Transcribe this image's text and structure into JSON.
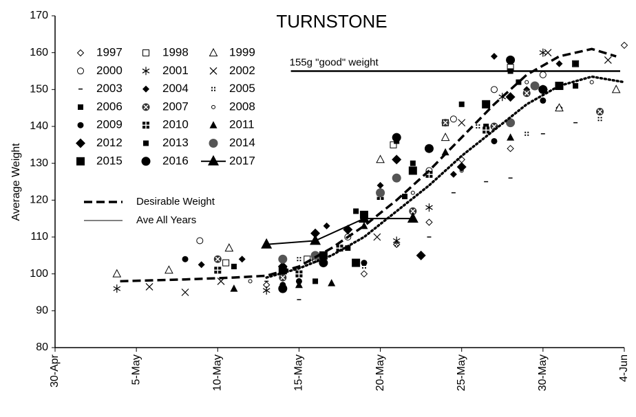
{
  "chart_data": {
    "type": "scatter",
    "title": "TURNSTONE",
    "y_label": "Average Weight",
    "xlim": [
      0,
      35
    ],
    "ylim": [
      80,
      170
    ],
    "xticks": [
      {
        "value": 0,
        "label": "30-Apr"
      },
      {
        "value": 5,
        "label": "5-May"
      },
      {
        "value": 10,
        "label": "10-May"
      },
      {
        "value": 15,
        "label": "15-May"
      },
      {
        "value": 20,
        "label": "20-May"
      },
      {
        "value": 25,
        "label": "25-May"
      },
      {
        "value": 30,
        "label": "30-May"
      },
      {
        "value": 35,
        "label": "4-Jun"
      }
    ],
    "yticks": [
      80,
      90,
      100,
      110,
      120,
      130,
      140,
      150,
      160,
      170
    ],
    "reference_line": {
      "value": 155,
      "x_start": 14.5,
      "label": "155g \"good\" weight"
    },
    "series": [
      {
        "name": "1997",
        "marker": "diamond-open",
        "color": "#000",
        "x": [
          13,
          19,
          21,
          23,
          25,
          28,
          31,
          35
        ],
        "values": [
          97,
          100,
          108,
          114,
          131,
          134,
          145,
          162
        ]
      },
      {
        "name": "1998",
        "marker": "square-open",
        "color": "#000",
        "x": [
          10.5,
          15.5,
          20.8,
          24,
          28,
          32
        ],
        "values": [
          103,
          104,
          135,
          141,
          156,
          157
        ]
      },
      {
        "name": "1999",
        "marker": "triangle-open",
        "color": "#000",
        "x": [
          3.8,
          7,
          10.7,
          20,
          24,
          31,
          34.5
        ],
        "values": [
          100,
          101,
          107,
          131,
          137,
          145,
          150
        ]
      },
      {
        "name": "2000",
        "marker": "circle-open",
        "color": "#000",
        "x": [
          8.9,
          18,
          21,
          23,
          24.5,
          27,
          30
        ],
        "values": [
          109,
          110,
          131,
          128,
          142,
          150,
          154
        ]
      },
      {
        "name": "2001",
        "marker": "asterisk",
        "color": "#000",
        "x": [
          3.8,
          13,
          21,
          23,
          27.5,
          30
        ],
        "values": [
          96,
          95.5,
          109,
          118,
          148,
          160
        ]
      },
      {
        "name": "2002",
        "marker": "x-cross",
        "color": "#000",
        "x": [
          5.8,
          8,
          10.2,
          19.8,
          25,
          30.3,
          34
        ],
        "values": [
          96.5,
          95,
          98,
          110,
          141,
          160,
          158
        ]
      },
      {
        "name": "2003",
        "marker": "dash",
        "color": "#000",
        "x": [
          13,
          15,
          23,
          24.5,
          26.5,
          28,
          30,
          32
        ],
        "values": [
          98,
          93,
          110,
          122,
          125,
          126,
          138,
          141
        ]
      },
      {
        "name": "2004",
        "marker": "diamond-filled",
        "color": "#000",
        "x": [
          9,
          11.5,
          16.7,
          20,
          22.5,
          24.5,
          27,
          29,
          31
        ],
        "values": [
          102.5,
          104,
          113,
          124,
          105,
          127,
          159,
          150,
          157
        ]
      },
      {
        "name": "2005",
        "marker": "dot-grid",
        "color": "#000",
        "x": [
          15,
          19,
          21,
          22,
          26,
          29,
          33.5
        ],
        "values": [
          104,
          102,
          108,
          117,
          140,
          138,
          142
        ]
      },
      {
        "name": "2006",
        "marker": "square-filled",
        "color": "#000",
        "x": [
          14,
          18,
          21.5,
          23,
          26.5,
          28.5,
          32
        ],
        "values": [
          99,
          107,
          121,
          134,
          140,
          152,
          157
        ]
      },
      {
        "name": "2007",
        "marker": "circle-cross",
        "color": "#333",
        "x": [
          10,
          14,
          16,
          19,
          22,
          24,
          27,
          29,
          33.5
        ],
        "values": [
          104,
          99,
          104,
          116,
          117,
          141,
          140,
          149,
          144
        ]
      },
      {
        "name": "2008",
        "marker": "circle-small",
        "color": "#000",
        "x": [
          12,
          18,
          22,
          25,
          29,
          33
        ],
        "values": [
          98,
          112,
          122,
          128,
          152,
          152
        ]
      },
      {
        "name": "2009",
        "marker": "circle-filled",
        "color": "#000",
        "x": [
          8,
          14,
          15,
          19,
          25,
          27,
          30
        ],
        "values": [
          104,
          97,
          98,
          103,
          129,
          136,
          147
        ]
      },
      {
        "name": "2010",
        "marker": "square-grid",
        "color": "#000",
        "x": [
          10,
          15,
          17.5,
          20,
          23,
          26.5
        ],
        "values": [
          101,
          100,
          107,
          121,
          127,
          139
        ]
      },
      {
        "name": "2011",
        "marker": "triangle-filled",
        "color": "#000",
        "x": [
          11,
          15,
          17,
          19,
          24,
          28
        ],
        "values": [
          96,
          97,
          97.5,
          113,
          133,
          137
        ]
      },
      {
        "name": "2012",
        "marker": "diamond-big",
        "color": "#000",
        "x": [
          14,
          16,
          18,
          21,
          22.5,
          25,
          28,
          30
        ],
        "values": [
          102,
          111,
          112,
          131,
          105,
          129,
          148,
          150
        ]
      },
      {
        "name": "2013",
        "marker": "square-filled",
        "color": "#000",
        "x": [
          11,
          16,
          18.5,
          21,
          22,
          25,
          28,
          32
        ],
        "values": [
          102,
          98,
          117,
          136,
          130,
          146,
          155,
          151
        ]
      },
      {
        "name": "2014",
        "marker": "circle-big",
        "color": "#555",
        "x": [
          14,
          16,
          20,
          21,
          28,
          29.5
        ],
        "values": [
          104,
          105,
          122,
          126,
          141,
          151
        ]
      },
      {
        "name": "2015",
        "marker": "square-big",
        "color": "#000",
        "x": [
          14,
          16.5,
          18.5,
          19,
          22,
          26.5,
          31
        ],
        "values": [
          101,
          105,
          103,
          116,
          128,
          146,
          151
        ]
      },
      {
        "name": "2016",
        "marker": "circle-big",
        "color": "#000",
        "x": [
          14,
          16.5,
          21,
          23,
          28,
          30
        ],
        "values": [
          96,
          103,
          137,
          134,
          158,
          150
        ]
      },
      {
        "name": "2017",
        "marker": "triangle-big",
        "line_style": "solid",
        "color": "#000",
        "x": [
          13,
          16,
          19,
          22
        ],
        "values": [
          108,
          109,
          115,
          115
        ]
      },
      {
        "name": "Desirable Weight",
        "line_style": "dashed",
        "color": "#000",
        "x": [
          4,
          8,
          11,
          13,
          15,
          17,
          19,
          21,
          23,
          25,
          27,
          29,
          31,
          33,
          34.5
        ],
        "values": [
          98,
          98.5,
          99,
          99.5,
          102,
          107,
          113,
          120,
          128,
          137,
          146,
          154,
          159,
          161,
          159
        ]
      },
      {
        "name": "Ave All Years",
        "line_style": "dotted",
        "color": "#000",
        "x": [
          13,
          15,
          17,
          19,
          21,
          23,
          25,
          27,
          29,
          31,
          33,
          35
        ],
        "values": [
          99,
          101.5,
          105,
          110,
          117,
          124,
          132,
          139,
          146,
          151,
          153.5,
          152
        ]
      }
    ]
  }
}
